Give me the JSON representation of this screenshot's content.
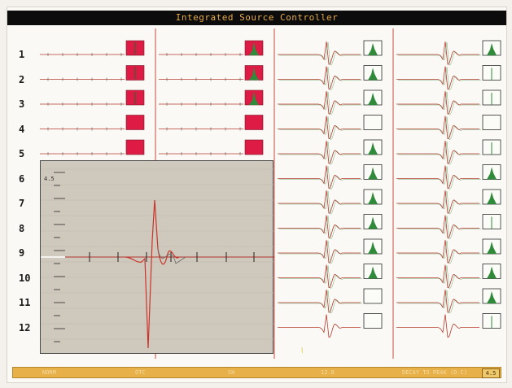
{
  "title": "Integrated Source Controller",
  "rows": [
    "1",
    "2",
    "3",
    "4",
    "5",
    "6",
    "7",
    "8",
    "9",
    "10",
    "11",
    "12"
  ],
  "zoom": {
    "scale_label": "4.5"
  },
  "status_bar": {
    "fields": [
      "NORM",
      "OTC",
      "SH",
      "12.0",
      "DECAY TO PEAK (D.C)"
    ],
    "value": "4.5"
  },
  "colors": {
    "trace": "#b73a2a",
    "trace_green": "#3b8a3f",
    "red_box": "#dd1b44",
    "green_fill": "#2f8a3a",
    "divider": "#c9463a",
    "title_text": "#e6a94a",
    "status_bg": "#e7b048"
  },
  "columns": [
    {
      "name": "column-1",
      "boxes": [
        "red-spike",
        "red-spike",
        "red-spike",
        "red",
        "red",
        "red"
      ]
    },
    {
      "name": "column-2",
      "boxes": [
        "red-hist",
        "red-hist",
        "red-hist",
        "red",
        "red",
        "red"
      ]
    },
    {
      "name": "column-3",
      "boxes": [
        "hist",
        "hist",
        "hist",
        "empty",
        "hist",
        "hist",
        "hist",
        "hist",
        "hist",
        "hist",
        "empty",
        "empty"
      ]
    },
    {
      "name": "column-4",
      "boxes": [
        "hist",
        "line",
        "line",
        "empty",
        "line",
        "hist",
        "hist",
        "line",
        "hist",
        "hist",
        "hist",
        "line"
      ]
    }
  ]
}
